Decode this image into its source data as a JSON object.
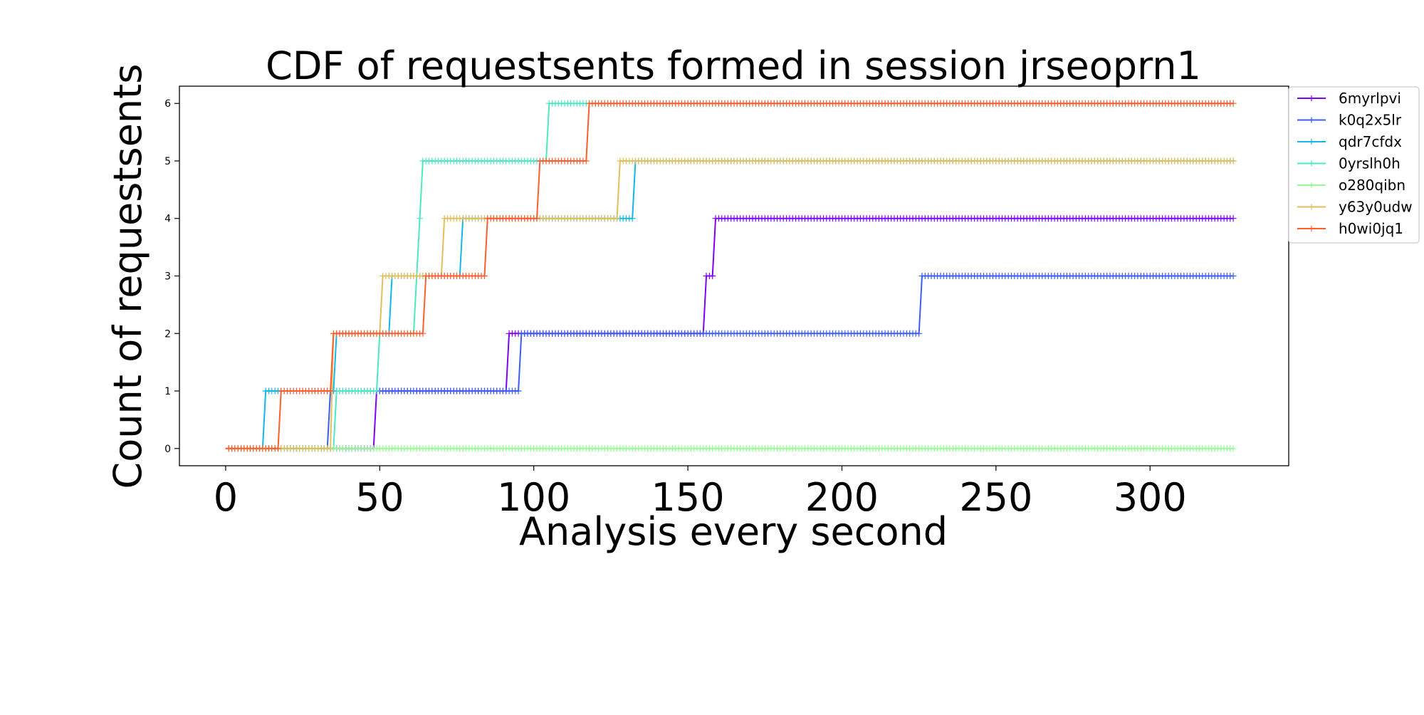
{
  "chart_data": {
    "type": "line",
    "title": "CDF of requestsents formed in session jrseoprn1",
    "xlabel": "Analysis every second",
    "ylabel": "Count of requestsents",
    "xlim": [
      -15,
      345
    ],
    "ylim": [
      -0.3,
      6.3
    ],
    "x_ticks": [
      0,
      50,
      100,
      150,
      200,
      250,
      300
    ],
    "y_ticks": [
      0,
      1,
      2,
      3,
      4,
      5,
      6
    ],
    "x_max": 327,
    "grid": false,
    "legend_position": "outside-right-top",
    "series": [
      {
        "name": "6myrlpvi",
        "color": "#8000ff",
        "steps": [
          [
            0,
            0
          ],
          [
            48,
            0
          ],
          [
            49,
            1
          ],
          [
            91,
            1
          ],
          [
            92,
            2
          ],
          [
            155,
            2
          ],
          [
            156,
            3
          ],
          [
            158,
            3
          ],
          [
            159,
            4
          ],
          [
            327,
            4
          ]
        ]
      },
      {
        "name": "k0q2x5lr",
        "color": "#3a5ef0",
        "steps": [
          [
            0,
            0
          ],
          [
            33,
            0
          ],
          [
            34,
            1
          ],
          [
            95,
            1
          ],
          [
            96,
            2
          ],
          [
            225,
            2
          ],
          [
            226,
            3
          ],
          [
            327,
            3
          ]
        ]
      },
      {
        "name": "qdr7cfdx",
        "color": "#13b8e6",
        "steps": [
          [
            0,
            0
          ],
          [
            12,
            0
          ],
          [
            13,
            1
          ],
          [
            35,
            1
          ],
          [
            36,
            2
          ],
          [
            53,
            2
          ],
          [
            54,
            3
          ],
          [
            76,
            3
          ],
          [
            77,
            4
          ],
          [
            132,
            4
          ],
          [
            133,
            5
          ],
          [
            327,
            5
          ]
        ]
      },
      {
        "name": "0yrslh0h",
        "color": "#4ee8c1",
        "steps": [
          [
            0,
            0
          ],
          [
            35,
            0
          ],
          [
            36,
            1
          ],
          [
            49,
            1
          ],
          [
            50,
            2
          ],
          [
            61,
            2
          ],
          [
            62,
            3
          ],
          [
            63,
            4
          ],
          [
            64,
            5
          ],
          [
            104,
            5
          ],
          [
            105,
            6
          ],
          [
            327,
            6
          ]
        ]
      },
      {
        "name": "o280qibn",
        "color": "#90ff90",
        "steps": [
          [
            0,
            0
          ],
          [
            327,
            0
          ]
        ]
      },
      {
        "name": "y63y0udw",
        "color": "#e3be5c",
        "steps": [
          [
            0,
            0
          ],
          [
            34,
            0
          ],
          [
            35,
            2
          ],
          [
            50,
            2
          ],
          [
            51,
            3
          ],
          [
            70,
            3
          ],
          [
            71,
            4
          ],
          [
            127,
            4
          ],
          [
            128,
            5
          ],
          [
            327,
            5
          ]
        ]
      },
      {
        "name": "h0wi0jq1",
        "color": "#ff5e30",
        "steps": [
          [
            0,
            0
          ],
          [
            17,
            0
          ],
          [
            18,
            1
          ],
          [
            34,
            1
          ],
          [
            35,
            2
          ],
          [
            64,
            2
          ],
          [
            65,
            3
          ],
          [
            84,
            3
          ],
          [
            85,
            4
          ],
          [
            101,
            4
          ],
          [
            102,
            5
          ],
          [
            117,
            5
          ],
          [
            118,
            6
          ],
          [
            327,
            6
          ]
        ]
      }
    ]
  }
}
